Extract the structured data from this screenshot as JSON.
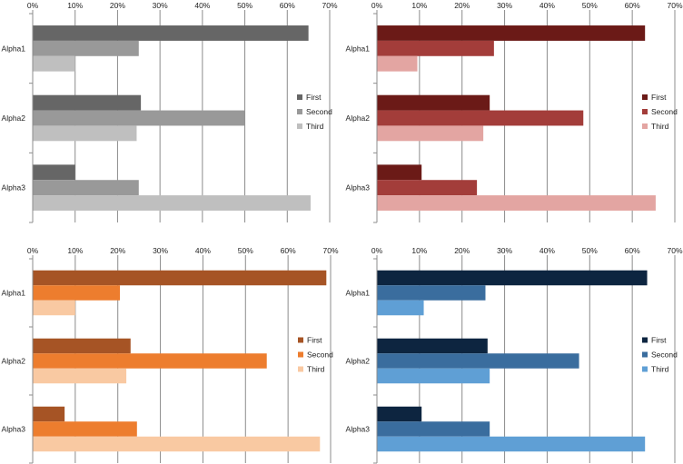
{
  "chart_data": [
    {
      "type": "bar",
      "orientation": "horizontal",
      "categories": [
        "Alpha1",
        "Alpha2",
        "Alpha3"
      ],
      "xticks": [
        "0%",
        "10%",
        "20%",
        "30%",
        "40%",
        "50%",
        "60%",
        "70%"
      ],
      "xlim": [
        0,
        70
      ],
      "grid": true,
      "legend_position": "right",
      "series": [
        {
          "name": "First",
          "color": "#666666",
          "values": [
            65,
            25.5,
            10
          ]
        },
        {
          "name": "Second",
          "color": "#999999",
          "values": [
            25,
            50,
            25
          ]
        },
        {
          "name": "Third",
          "color": "#bfbfbf",
          "values": [
            10,
            24.5,
            65.5
          ]
        }
      ]
    },
    {
      "type": "bar",
      "orientation": "horizontal",
      "categories": [
        "Alpha1",
        "Alpha2",
        "Alpha3"
      ],
      "xticks": [
        "0%",
        "10%",
        "20%",
        "30%",
        "40%",
        "50%",
        "60%",
        "70%"
      ],
      "xlim": [
        0,
        70
      ],
      "grid": true,
      "legend_position": "right",
      "series": [
        {
          "name": "First",
          "color": "#6b1a17",
          "values": [
            63,
            26.5,
            10.5
          ]
        },
        {
          "name": "Second",
          "color": "#a33d3a",
          "values": [
            27.5,
            48.5,
            23.5
          ]
        },
        {
          "name": "Third",
          "color": "#e3a5a2",
          "values": [
            9.5,
            25,
            65.5
          ]
        }
      ]
    },
    {
      "type": "bar",
      "orientation": "horizontal",
      "categories": [
        "Alpha1",
        "Alpha2",
        "Alpha3"
      ],
      "xticks": [
        "0%",
        "10%",
        "20%",
        "30%",
        "40%",
        "50%",
        "60%",
        "70%"
      ],
      "xlim": [
        0,
        70
      ],
      "grid": true,
      "legend_position": "right",
      "series": [
        {
          "name": "First",
          "color": "#a65425",
          "values": [
            69,
            23,
            7.5
          ]
        },
        {
          "name": "Second",
          "color": "#ed7d2e",
          "values": [
            20.5,
            55,
            24.5
          ]
        },
        {
          "name": "Third",
          "color": "#f9c9a2",
          "values": [
            10,
            22,
            67.5
          ]
        }
      ]
    },
    {
      "type": "bar",
      "orientation": "horizontal",
      "categories": [
        "Alpha1",
        "Alpha2",
        "Alpha3"
      ],
      "xticks": [
        "0%",
        "10%",
        "20%",
        "30%",
        "40%",
        "50%",
        "60%",
        "70%"
      ],
      "xlim": [
        0,
        70
      ],
      "grid": true,
      "legend_position": "right",
      "series": [
        {
          "name": "First",
          "color": "#0d2540",
          "values": [
            63.5,
            26,
            10.5
          ]
        },
        {
          "name": "Second",
          "color": "#3a6d9e",
          "values": [
            25.5,
            47.5,
            26.5
          ]
        },
        {
          "name": "Third",
          "color": "#5f9fd5",
          "values": [
            11,
            26.5,
            63
          ]
        }
      ]
    }
  ]
}
